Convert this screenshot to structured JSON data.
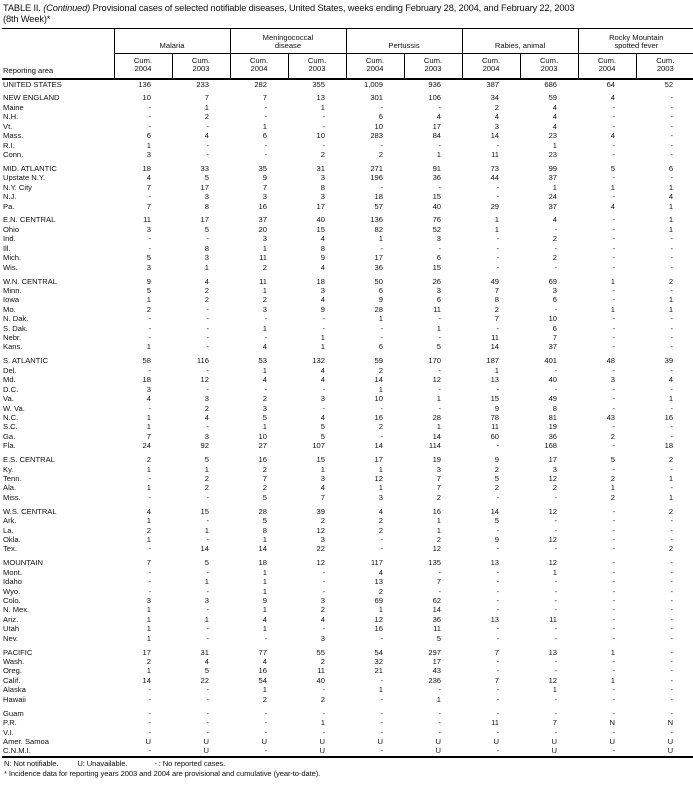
{
  "title": {
    "part1": "TABLE II. ",
    "continued": "(Continued)",
    "part2": " Provisional cases of selected notifiable diseases, United States, weeks ending February 28, 2004, and February 22, 2003",
    "line2": "(8th Week)*"
  },
  "table": {
    "reporting_area": "Reporting area",
    "cum_label": "Cum.",
    "years": [
      "2004",
      "2003"
    ],
    "groups": [
      "Malaria",
      "Meningococcal\ndisease",
      "Pertussis",
      "Rabies, animal",
      "Rocky Mountain\nspotted fever"
    ],
    "sections": [
      {
        "name": "united-states",
        "rows": [
          [
            "UNITED STATES",
            "136",
            "233",
            "282",
            "355",
            "1,009",
            "936",
            "387",
            "686",
            "64",
            "52"
          ]
        ]
      },
      {
        "name": "new-england",
        "rows": [
          [
            "NEW ENGLAND",
            "10",
            "7",
            "7",
            "13",
            "301",
            "106",
            "34",
            "59",
            "4",
            "-"
          ],
          [
            "Maine",
            "-",
            "1",
            "-",
            "1",
            "-",
            "-",
            "2",
            "4",
            "-",
            "-"
          ],
          [
            "N.H.",
            "-",
            "2",
            "-",
            "-",
            "6",
            "4",
            "4",
            "4",
            "-",
            "-"
          ],
          [
            "Vt.",
            "-",
            "-",
            "1",
            "-",
            "10",
            "17",
            "3",
            "4",
            "-",
            "-"
          ],
          [
            "Mass.",
            "6",
            "4",
            "6",
            "10",
            "283",
            "84",
            "14",
            "23",
            "4",
            "-"
          ],
          [
            "R.I.",
            "1",
            "-",
            "-",
            "-",
            "-",
            "-",
            "-",
            "1",
            "-",
            "-"
          ],
          [
            "Conn.",
            "3",
            "-",
            "-",
            "2",
            "2",
            "1",
            "11",
            "23",
            "-",
            "-"
          ]
        ]
      },
      {
        "name": "mid-atlantic",
        "rows": [
          [
            "MID. ATLANTIC",
            "18",
            "33",
            "35",
            "31",
            "271",
            "91",
            "73",
            "99",
            "5",
            "6"
          ],
          [
            "Upstate N.Y.",
            "4",
            "5",
            "9",
            "3",
            "196",
            "36",
            "44",
            "37",
            "-",
            "-"
          ],
          [
            "N.Y. City",
            "7",
            "17",
            "7",
            "8",
            "-",
            "-",
            "-",
            "1",
            "1",
            "1"
          ],
          [
            "N.J.",
            "-",
            "3",
            "3",
            "3",
            "18",
            "15",
            "-",
            "24",
            "-",
            "4"
          ],
          [
            "Pa.",
            "7",
            "8",
            "16",
            "17",
            "57",
            "40",
            "29",
            "37",
            "4",
            "1"
          ]
        ]
      },
      {
        "name": "en-central",
        "rows": [
          [
            "E.N. CENTRAL",
            "11",
            "17",
            "37",
            "40",
            "136",
            "76",
            "1",
            "4",
            "-",
            "1"
          ],
          [
            "Ohio",
            "3",
            "5",
            "20",
            "15",
            "82",
            "52",
            "1",
            "-",
            "-",
            "1"
          ],
          [
            "Ind.",
            "-",
            "-",
            "3",
            "4",
            "1",
            "3",
            "-",
            "2",
            "-",
            "-"
          ],
          [
            "Ill.",
            "-",
            "8",
            "1",
            "8",
            "-",
            "-",
            "-",
            "-",
            "-",
            "-"
          ],
          [
            "Mich.",
            "5",
            "3",
            "11",
            "9",
            "17",
            "6",
            "-",
            "2",
            "-",
            "-"
          ],
          [
            "Wis.",
            "3",
            "1",
            "2",
            "4",
            "36",
            "15",
            "-",
            "-",
            "-",
            "-"
          ]
        ]
      },
      {
        "name": "wn-central",
        "rows": [
          [
            "W.N. CENTRAL",
            "9",
            "4",
            "11",
            "18",
            "50",
            "26",
            "49",
            "69",
            "1",
            "2"
          ],
          [
            "Minn.",
            "5",
            "2",
            "1",
            "3",
            "6",
            "3",
            "7",
            "3",
            "-",
            "-"
          ],
          [
            "Iowa",
            "1",
            "2",
            "2",
            "4",
            "9",
            "6",
            "8",
            "6",
            "-",
            "1"
          ],
          [
            "Mo.",
            "2",
            "-",
            "3",
            "9",
            "28",
            "11",
            "2",
            "-",
            "1",
            "1"
          ],
          [
            "N. Dak.",
            "-",
            "-",
            "-",
            "-",
            "1",
            "-",
            "7",
            "10",
            "-",
            "-"
          ],
          [
            "S. Dak.",
            "-",
            "-",
            "1",
            "-",
            "-",
            "1",
            "-",
            "6",
            "-",
            "-"
          ],
          [
            "Nebr.",
            "-",
            "-",
            "-",
            "1",
            "-",
            "-",
            "11",
            "7",
            "-",
            "-"
          ],
          [
            "Kans.",
            "1",
            "-",
            "4",
            "1",
            "6",
            "5",
            "14",
            "37",
            "-",
            "-"
          ]
        ]
      },
      {
        "name": "s-atlantic",
        "rows": [
          [
            "S. ATLANTIC",
            "58",
            "116",
            "53",
            "132",
            "59",
            "170",
            "187",
            "401",
            "48",
            "39"
          ],
          [
            "Del.",
            "-",
            "-",
            "1",
            "4",
            "2",
            "-",
            "1",
            "-",
            "-",
            "-"
          ],
          [
            "Md.",
            "18",
            "12",
            "4",
            "4",
            "14",
            "12",
            "13",
            "40",
            "3",
            "4"
          ],
          [
            "D.C.",
            "3",
            "-",
            "-",
            "-",
            "1",
            "-",
            "-",
            "-",
            "-",
            "-"
          ],
          [
            "Va.",
            "4",
            "3",
            "2",
            "3",
            "10",
            "1",
            "15",
            "49",
            "-",
            "1"
          ],
          [
            "W. Va.",
            "-",
            "2",
            "3",
            "-",
            "-",
            "-",
            "9",
            "8",
            "-",
            "-"
          ],
          [
            "N.C.",
            "1",
            "4",
            "5",
            "4",
            "16",
            "28",
            "78",
            "81",
            "43",
            "16"
          ],
          [
            "S.C.",
            "1",
            "-",
            "1",
            "5",
            "2",
            "1",
            "11",
            "19",
            "-",
            "-"
          ],
          [
            "Ga.",
            "7",
            "3",
            "10",
            "5",
            "-",
            "14",
            "60",
            "36",
            "2",
            "-"
          ],
          [
            "Fla.",
            "24",
            "92",
            "27",
            "107",
            "14",
            "114",
            "-",
            "168",
            "-",
            "18"
          ]
        ]
      },
      {
        "name": "es-central",
        "rows": [
          [
            "E.S. CENTRAL",
            "2",
            "5",
            "16",
            "15",
            "17",
            "19",
            "9",
            "17",
            "5",
            "2"
          ],
          [
            "Ky.",
            "1",
            "1",
            "2",
            "1",
            "1",
            "3",
            "2",
            "3",
            "-",
            "-"
          ],
          [
            "Tenn.",
            "-",
            "2",
            "7",
            "3",
            "12",
            "7",
            "5",
            "12",
            "2",
            "1"
          ],
          [
            "Ala.",
            "1",
            "2",
            "2",
            "4",
            "1",
            "7",
            "2",
            "2",
            "1",
            "-"
          ],
          [
            "Miss.",
            "-",
            "-",
            "5",
            "7",
            "3",
            "2",
            "-",
            "-",
            "2",
            "1"
          ]
        ]
      },
      {
        "name": "ws-central",
        "rows": [
          [
            "W.S. CENTRAL",
            "4",
            "15",
            "28",
            "39",
            "4",
            "16",
            "14",
            "12",
            "-",
            "2"
          ],
          [
            "Ark.",
            "1",
            "-",
            "5",
            "2",
            "2",
            "1",
            "5",
            "-",
            "-",
            "-"
          ],
          [
            "La.",
            "2",
            "1",
            "8",
            "12",
            "2",
            "1",
            "-",
            "-",
            "-",
            "-"
          ],
          [
            "Okla.",
            "1",
            "-",
            "1",
            "3",
            "-",
            "2",
            "9",
            "12",
            "-",
            "-"
          ],
          [
            "Tex.",
            "-",
            "14",
            "14",
            "22",
            "-",
            "12",
            "-",
            "-",
            "-",
            "2"
          ]
        ]
      },
      {
        "name": "mountain",
        "rows": [
          [
            "MOUNTAIN",
            "7",
            "5",
            "18",
            "12",
            "117",
            "135",
            "13",
            "12",
            "-",
            "-"
          ],
          [
            "Mont.",
            "-",
            "-",
            "1",
            "-",
            "4",
            "-",
            "-",
            "1",
            "-",
            "-"
          ],
          [
            "Idaho",
            "-",
            "1",
            "1",
            "-",
            "13",
            "7",
            "-",
            "-",
            "-",
            "-"
          ],
          [
            "Wyo.",
            "-",
            "-",
            "1",
            "-",
            "2",
            "-",
            "-",
            "-",
            "-",
            "-"
          ],
          [
            "Colo.",
            "3",
            "3",
            "9",
            "3",
            "69",
            "62",
            "-",
            "-",
            "-",
            "-"
          ],
          [
            "N. Mex.",
            "1",
            "-",
            "1",
            "2",
            "1",
            "14",
            "-",
            "-",
            "-",
            "-"
          ],
          [
            "Ariz.",
            "1",
            "1",
            "4",
            "4",
            "12",
            "36",
            "13",
            "11",
            "-",
            "-"
          ],
          [
            "Utah",
            "1",
            "-",
            "1",
            "-",
            "16",
            "11",
            "-",
            "-",
            "-",
            "-"
          ],
          [
            "Nev.",
            "1",
            "-",
            "-",
            "3",
            "-",
            "5",
            "-",
            "-",
            "-",
            "-"
          ]
        ]
      },
      {
        "name": "pacific",
        "rows": [
          [
            "PACIFIC",
            "17",
            "31",
            "77",
            "55",
            "54",
            "297",
            "7",
            "13",
            "1",
            "-"
          ],
          [
            "Wash.",
            "2",
            "4",
            "4",
            "2",
            "32",
            "17",
            "-",
            "-",
            "-",
            "-"
          ],
          [
            "Oreg.",
            "1",
            "5",
            "16",
            "11",
            "21",
            "43",
            "-",
            "-",
            "-",
            "-"
          ],
          [
            "Calif.",
            "14",
            "22",
            "54",
            "40",
            "-",
            "236",
            "7",
            "12",
            "1",
            "-"
          ],
          [
            "Alaska",
            "-",
            "-",
            "1",
            "-",
            "1",
            "-",
            "-",
            "1",
            "-",
            "-"
          ],
          [
            "Hawaii",
            "-",
            "-",
            "2",
            "2",
            "-",
            "1",
            "-",
            "-",
            "-",
            "-"
          ]
        ]
      },
      {
        "name": "territories",
        "rows": [
          [
            "Guam",
            "-",
            "-",
            "-",
            "-",
            "-",
            "-",
            "-",
            "-",
            "-",
            "-"
          ],
          [
            "P.R.",
            "-",
            "-",
            "-",
            "1",
            "-",
            "-",
            "11",
            "7",
            "N",
            "N"
          ],
          [
            "V.I.",
            "-",
            "-",
            "-",
            "-",
            "-",
            "-",
            "-",
            "-",
            "-",
            "-"
          ],
          [
            "Amer. Samoa",
            "U",
            "U",
            "U",
            "U",
            "U",
            "U",
            "U",
            "U",
            "U",
            "U"
          ],
          [
            "C.N.M.I.",
            "-",
            "U",
            "-",
            "U",
            "-",
            "U",
            "-",
            "U",
            "-",
            "U"
          ]
        ]
      }
    ]
  },
  "footnotes": {
    "not_notifiable": "N: Not notifiable.",
    "unavailable": "U: Unavailable.",
    "no_cases": "- : No reported cases.",
    "provisional": "* Incidence data for reporting years 2003 and 2004 are provisional and cumulative (year-to-date)."
  }
}
